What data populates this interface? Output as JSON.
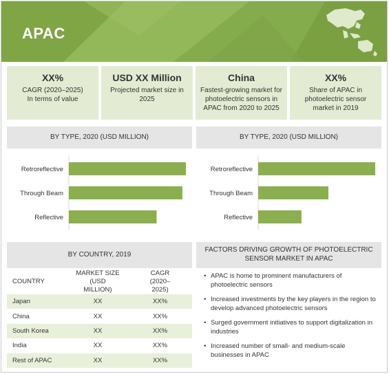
{
  "banner": {
    "title": "APAC"
  },
  "kpis": [
    {
      "value": "XX%",
      "desc": "CAGR (2020–2025) In terms of value"
    },
    {
      "value": "USD XX Million",
      "desc": "Projected market size in 2025"
    },
    {
      "value": "China",
      "desc": "Fastest-growing market for photoelectric sensors in APAC from 2020 to 2025"
    },
    {
      "value": "XX%",
      "desc": "Share of APAC in photoelectric sensor market in 2019"
    }
  ],
  "charts_header": {
    "left": "BY TYPE, 2020 (USD MILLION)",
    "right": "BY TYPE, 2020 (USD MILLION)"
  },
  "chart_data": [
    {
      "type": "bar",
      "orientation": "horizontal",
      "title": "BY TYPE, 2020 (USD MILLION)",
      "categories": [
        "Retroreflective",
        "Through Beam",
        "Reflective"
      ],
      "values": [
        100,
        97,
        75
      ],
      "xlim": [
        0,
        140
      ],
      "grid": false,
      "bar_color": "#8ab04e"
    },
    {
      "type": "bar",
      "orientation": "horizontal",
      "title": "BY TYPE, 2020 (USD MILLION)",
      "categories": [
        "Retroreflective",
        "Through Beam",
        "Reflective"
      ],
      "values": [
        100,
        60,
        37
      ],
      "xlim": [
        0,
        140
      ],
      "grid": false,
      "bar_color": "#8ab04e"
    }
  ],
  "country": {
    "header": "BY COUNTRY, 2019",
    "columns": [
      "COUNTRY",
      "MARKET SIZE (USD MILLION)",
      "CAGR (2020–2025)"
    ],
    "rows": [
      [
        "Japan",
        "XX",
        "XX%"
      ],
      [
        "China",
        "XX",
        "XX%"
      ],
      [
        "South Korea",
        "XX",
        "XX%"
      ],
      [
        "India",
        "XX",
        "XX%"
      ],
      [
        "Rest of APAC",
        "XX",
        "XX%"
      ]
    ]
  },
  "factors": {
    "header": "FACTORS DRIVING GROWTH OF PHOTOELECTRIC SENSOR MARKET IN APAC",
    "items": [
      "APAC is home to prominent manufacturers of photoelectric sensors",
      "Increased investments by the key players in the region to develop advanced photoelectric sensors",
      "Surged government initiatives to support digitalization in industries",
      "Increased number of small- and medium-scale businesses in APAC"
    ]
  },
  "colors": {
    "accent": "#8ab04e",
    "panel_light": "#e3ecd3",
    "header_gray": "#e5e5e5"
  }
}
